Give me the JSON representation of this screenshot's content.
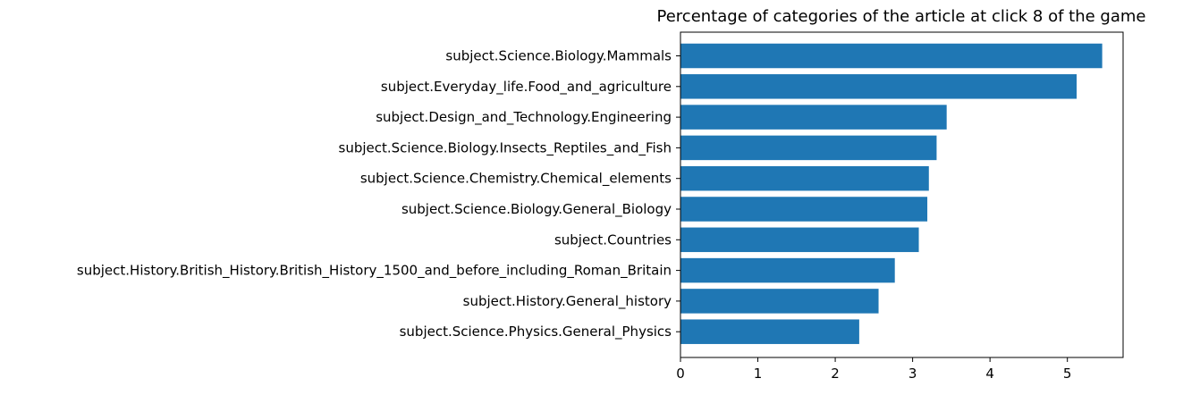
{
  "chart_data": {
    "type": "bar",
    "orientation": "horizontal",
    "title": "Percentage of categories of the article at click 8 of the game",
    "xlabel": "",
    "ylabel": "",
    "categories": [
      "subject.Science.Biology.Mammals",
      "subject.Everyday_life.Food_and_agriculture",
      "subject.Design_and_Technology.Engineering",
      "subject.Science.Biology.Insects_Reptiles_and_Fish",
      "subject.Science.Chemistry.Chemical_elements",
      "subject.Science.Biology.General_Biology",
      "subject.Countries",
      "subject.History.British_History.British_History_1500_and_before_including_Roman_Britain",
      "subject.History.General_history",
      "subject.Science.Physics.General_Physics"
    ],
    "values": [
      5.45,
      5.12,
      3.44,
      3.31,
      3.21,
      3.19,
      3.08,
      2.77,
      2.56,
      2.31
    ],
    "xlim": [
      0,
      5.72
    ],
    "xticks": [
      "0",
      "1",
      "2",
      "3",
      "4",
      "5"
    ],
    "grid": false,
    "bar_color": "#1f77b4"
  }
}
